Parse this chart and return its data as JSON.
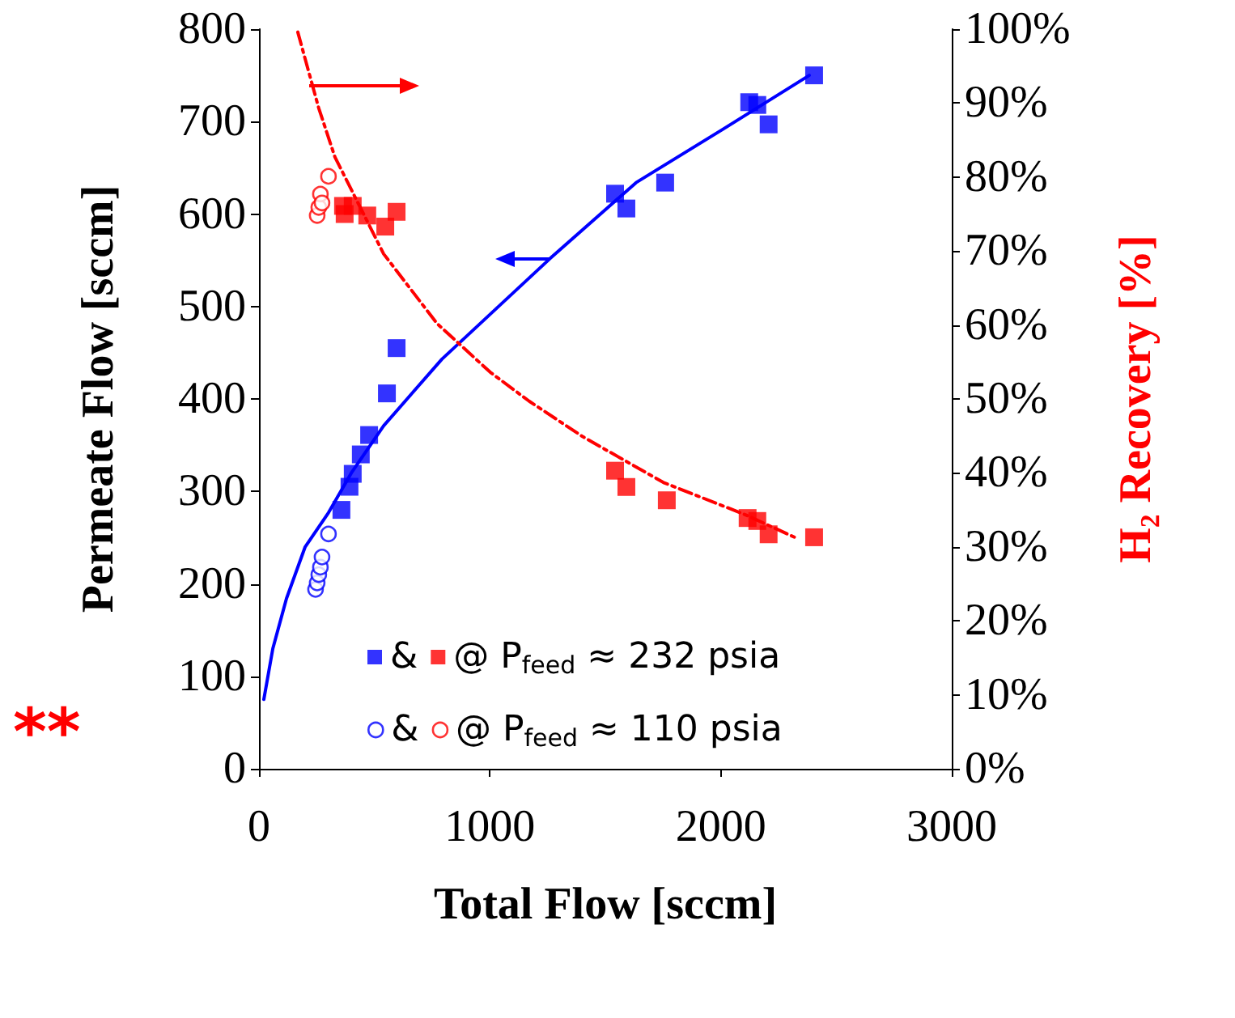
{
  "chart_data": {
    "type": "scatter",
    "xlabel": "Total Flow [sccm]",
    "ylabel": "Permeate Flow [sccm]",
    "y2label": "H₂ Recovery [%]",
    "xlim": [
      0,
      3000
    ],
    "xticks": [
      0,
      1000,
      2000,
      3000
    ],
    "ylim": [
      0,
      800
    ],
    "yticks": [
      0,
      100,
      200,
      300,
      400,
      500,
      600,
      700,
      800
    ],
    "y2lim": [
      0,
      100
    ],
    "y2ticks": [
      {
        "value": 0,
        "label": "0%"
      },
      {
        "value": 10,
        "label": "10%"
      },
      {
        "value": 20,
        "label": "20%"
      },
      {
        "value": 30,
        "label": "30%"
      },
      {
        "value": 40,
        "label": "40%"
      },
      {
        "value": 50,
        "label": "50%"
      },
      {
        "value": 60,
        "label": "60%"
      },
      {
        "value": 70,
        "label": "70%"
      },
      {
        "value": 80,
        "label": "80%"
      },
      {
        "value": 90,
        "label": "90%"
      },
      {
        "value": 100,
        "label": "100%"
      }
    ],
    "grid": false,
    "legend": "bottom",
    "annotations": [
      "**"
    ],
    "series": [
      {
        "name": "&",
        "marker": "square",
        "color": "#0000ff",
        "x": [
          357,
          392,
          406,
          441,
          477,
          554,
          596,
          1542,
          1591,
          1759,
          2123,
          2158,
          2207,
          2404
        ],
        "values": [
          280,
          305,
          319,
          340,
          361,
          406,
          455,
          622,
          606,
          634,
          721,
          718,
          697,
          750
        ]
      },
      {
        "name": "&",
        "marker": "circle",
        "color": "#0000ff",
        "x": [
          245,
          252,
          259,
          266,
          273,
          301
        ],
        "values": [
          194,
          201,
          210,
          218,
          229,
          254
        ]
      },
      {
        "type": "line",
        "marker": "none",
        "line_style": "solid",
        "color": "#0000ff",
        "x": [
          21,
          60,
          119,
          200,
          301,
          400,
          540,
          792,
          1261,
          1633,
          2011,
          2383
        ],
        "values": [
          75,
          130,
          184,
          240,
          277,
          320,
          371,
          443,
          552,
          634,
          692,
          750
        ]
      },
      {
        "name": "@ P$_{feed}$ ≈ 232 psia",
        "marker": "square",
        "color": "#ff0000",
        "axis": "y2",
        "x": [
          364,
          371,
          406,
          469,
          547,
          596,
          1542,
          1591,
          1766,
          2116,
          2158,
          2207,
          2404
        ],
        "values": [
          76.1,
          75,
          76.1,
          74.8,
          73.3,
          75.3,
          40.3,
          38.1,
          36.3,
          33.9,
          33.5,
          31.7,
          31.3
        ]
      },
      {
        "name": "@ P$_{feed}$ ≈ 110 psia",
        "marker": "circle",
        "color": "#ff0000",
        "axis": "y2",
        "x": [
          252,
          259,
          266,
          273,
          301
        ],
        "values": [
          74.8,
          75.9,
          77.7,
          76.5,
          80.1
        ]
      },
      {
        "type": "line",
        "marker": "none",
        "line_style": "dashed",
        "color": "#ff0000",
        "axis": "y2",
        "x": [
          168,
          259,
          329,
          540,
          771,
          1002,
          1170,
          1402,
          1752,
          2102,
          2334
        ],
        "values": [
          99.6,
          89.3,
          82.7,
          69.6,
          60.2,
          53.6,
          49.7,
          44.9,
          38.7,
          34.4,
          31.1
        ]
      }
    ]
  }
}
